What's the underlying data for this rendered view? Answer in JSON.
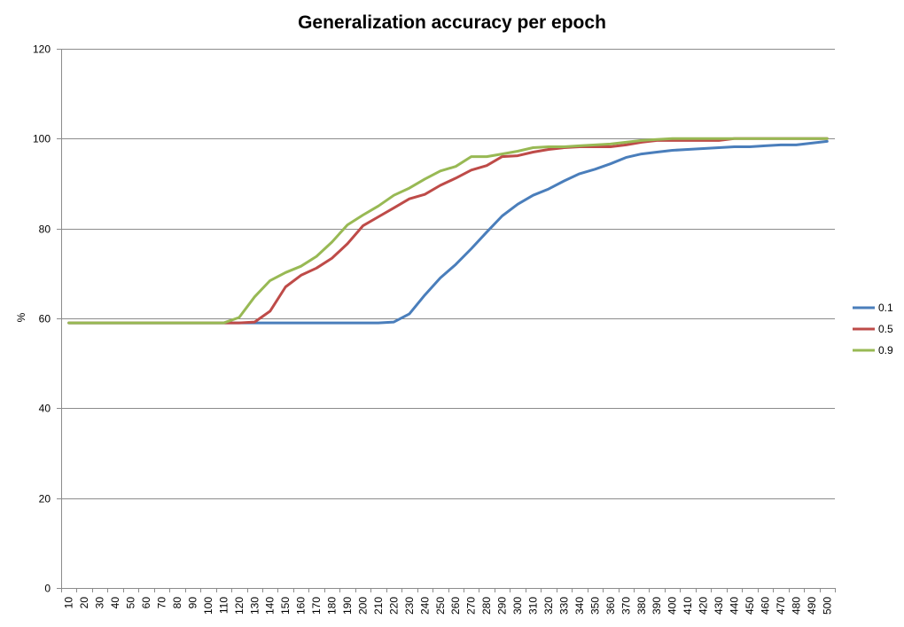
{
  "chart_data": {
    "type": "line",
    "title": "Generalization accuracy per epoch",
    "xlabel": "",
    "ylabel": "%",
    "ylim": [
      0,
      120
    ],
    "yticks": [
      0,
      20,
      40,
      60,
      80,
      100,
      120
    ],
    "grid": true,
    "legend_position": "right",
    "categories": [
      "10",
      "20",
      "30",
      "40",
      "50",
      "60",
      "70",
      "80",
      "90",
      "100",
      "110",
      "120",
      "130",
      "140",
      "150",
      "160",
      "170",
      "180",
      "190",
      "200",
      "210",
      "220",
      "230",
      "240",
      "250",
      "260",
      "270",
      "280",
      "290",
      "300",
      "310",
      "320",
      "330",
      "340",
      "350",
      "360",
      "370",
      "380",
      "390",
      "400",
      "410",
      "420",
      "430",
      "440",
      "450",
      "460",
      "470",
      "480",
      "490",
      "500"
    ],
    "series": [
      {
        "name": "0.1",
        "color": "#4a7ebb",
        "values": [
          59,
          59,
          59,
          59,
          59,
          59,
          59,
          59,
          59,
          59,
          59,
          59,
          59,
          59,
          59,
          59,
          59,
          59,
          59,
          59,
          59,
          59.2,
          61,
          65.2,
          69,
          72,
          75.5,
          79.2,
          82.8,
          85.4,
          87.4,
          88.8,
          90.6,
          92.2,
          93.2,
          94.4,
          95.8,
          96.6,
          97,
          97.4,
          97.6,
          97.8,
          98,
          98.2,
          98.2,
          98.4,
          98.6,
          98.6,
          99,
          99.4
        ]
      },
      {
        "name": "0.5",
        "color": "#be4b48",
        "values": [
          59,
          59,
          59,
          59,
          59,
          59,
          59,
          59,
          59,
          59,
          59,
          59,
          59.2,
          61.6,
          67,
          69.6,
          71.2,
          73.4,
          76.6,
          80.6,
          82.6,
          84.6,
          86.6,
          87.6,
          89.6,
          91.2,
          93,
          94,
          96,
          96.2,
          97,
          97.6,
          98,
          98.2,
          98.2,
          98.2,
          98.6,
          99.2,
          99.6,
          99.6,
          99.6,
          99.6,
          99.6,
          100,
          100,
          100,
          100,
          100,
          100,
          100
        ]
      },
      {
        "name": "0.9",
        "color": "#98b954",
        "values": [
          59,
          59,
          59,
          59,
          59,
          59,
          59,
          59,
          59,
          59,
          59,
          60.2,
          64.8,
          68.4,
          70.2,
          71.6,
          73.8,
          77,
          80.8,
          83,
          85,
          87.4,
          89,
          91,
          92.8,
          93.8,
          96,
          96,
          96.6,
          97.2,
          98,
          98.2,
          98.2,
          98.4,
          98.6,
          98.8,
          99.2,
          99.6,
          99.8,
          100,
          100,
          100,
          100,
          100,
          100,
          100,
          100,
          100,
          100,
          100
        ]
      }
    ]
  }
}
